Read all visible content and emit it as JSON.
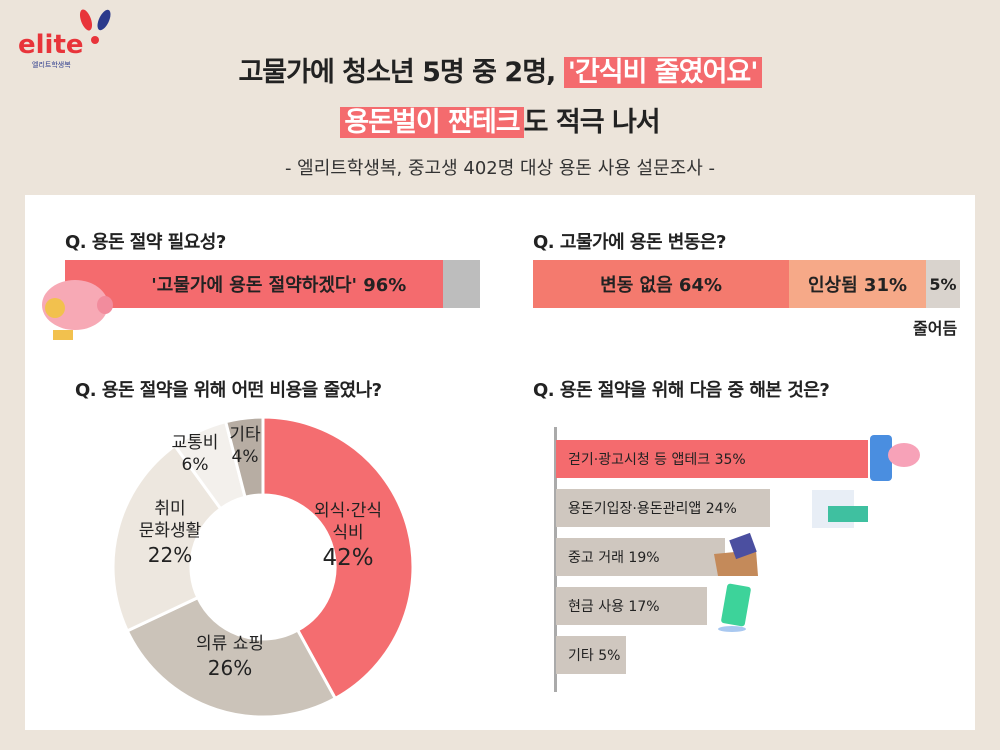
{
  "logo": {
    "word": "elite",
    "sub": "엘리트학생복"
  },
  "title": {
    "line1_pre": "고물가에 청소년 5명 중 2명, ",
    "line1_hl": "'간식비 줄였어요'",
    "line2_hl": "용돈벌이 짠테크",
    "line2_post": "도 적극 나서"
  },
  "subtitle": "- 엘리트학생복, 중고생 402명 대상 용돈 사용 설문조사 -",
  "colors": {
    "accent": "#f46b6e",
    "gray": "#bdbdbd",
    "beige": "#cfc7bf"
  },
  "chart_data": [
    {
      "type": "bar",
      "title": "Q. 용돈 절약 필요성?",
      "label": "'고물가에 용돈 절약하겠다' 96%",
      "values": [
        96,
        4
      ]
    },
    {
      "type": "bar",
      "title": "Q. 고물가에 용돈 변동은?",
      "categories": [
        "변동 없음",
        "인상됨",
        "줄어듬"
      ],
      "values": [
        64,
        31,
        5
      ],
      "labels": [
        "변동 없음 64%",
        "인상됨 31%",
        "5%"
      ],
      "extra_label": "줄어듬"
    },
    {
      "type": "pie",
      "title": "Q. 용돈 절약을 위해 어떤 비용을 줄였나?",
      "categories": [
        "외식·간식 식비",
        "의류 쇼핑",
        "취미 문화생활",
        "교통비",
        "기타"
      ],
      "values": [
        42,
        26,
        22,
        6,
        4
      ],
      "labels": [
        {
          "name": "외식·간식\n식비",
          "pct": "42%"
        },
        {
          "name": "의류 쇼핑",
          "pct": "26%"
        },
        {
          "name": "취미\n문화생활",
          "pct": "22%"
        },
        {
          "name": "교통비",
          "pct": "6%"
        },
        {
          "name": "기타",
          "pct": "4%"
        }
      ]
    },
    {
      "type": "bar",
      "title": "Q. 용돈 절약을 위해 다음 중 해본 것은?",
      "categories": [
        "걷기·광고시청 등 앱테크",
        "용돈기입장·용돈관리앱",
        "중고 거래",
        "현금 사용",
        "기타"
      ],
      "values": [
        35,
        24,
        19,
        17,
        5
      ],
      "labels": [
        "걷기·광고시청 등 앱테크   35%",
        "용돈기입장·용돈관리앱   24%",
        "중고 거래  19%",
        "현금 사용  17%",
        "기타  5%"
      ]
    }
  ]
}
